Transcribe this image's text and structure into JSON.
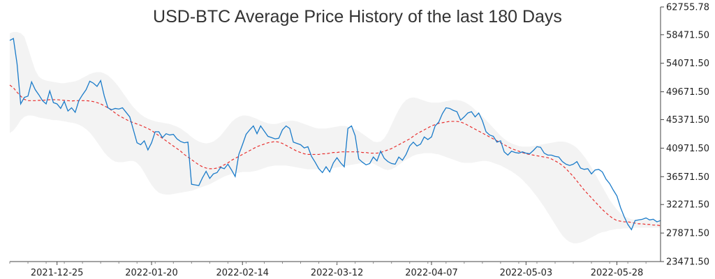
{
  "chart_data": {
    "type": "line",
    "title": "USD-BTC Average Price History of the last 180 Days",
    "xlabel": "",
    "ylabel": "",
    "x_ticks": [
      "2021-12-25",
      "2022-01-20",
      "2022-02-14",
      "2022-03-12",
      "2022-04-07",
      "2022-05-03",
      "2022-05-28"
    ],
    "y_ticks": [
      23471.5,
      27871.5,
      32271.5,
      36571.5,
      40971.5,
      45371.5,
      49671.5,
      54071.5,
      58471.5,
      62755.78
    ],
    "y_tick_labels": [
      "23471.50",
      "27871.50",
      "32271.50",
      "36571.50",
      "40971.50",
      "45371.50",
      "49671.50",
      "54071.50",
      "58471.50",
      "62755.78"
    ],
    "ylim": [
      23471.5,
      62755.78
    ],
    "x_start": "2021-12-12",
    "y_axis_position": "right",
    "grid": false,
    "colors": {
      "price": "#1a7bc9",
      "moving_average": "#e8302f",
      "band": "#ececec"
    },
    "series": [
      {
        "kind": "price",
        "values": [
          57600,
          57900,
          54000,
          47800,
          48800,
          49000,
          51200,
          50000,
          49200,
          48300,
          47800,
          49800,
          48000,
          47800,
          47100,
          48200,
          46700,
          47200,
          46500,
          48300,
          49200,
          50000,
          51300,
          51000,
          50500,
          51400,
          49000,
          47200,
          46900,
          47100,
          47000,
          47200,
          46500,
          45800,
          43800,
          41800,
          41500,
          42100,
          40700,
          41800,
          43500,
          43500,
          42600,
          43200,
          43000,
          43100,
          42400,
          42000,
          41800,
          41900,
          35400,
          35300,
          35200,
          36400,
          37400,
          36300,
          37000,
          37200,
          38000,
          37800,
          38500,
          37600,
          36600,
          40000,
          41500,
          43100,
          43800,
          44400,
          43200,
          44400,
          43600,
          42800,
          42600,
          42400,
          42500,
          43800,
          44400,
          44000,
          41900,
          41700,
          41500,
          41000,
          41200,
          39700,
          38800,
          37800,
          37200,
          38100,
          37300,
          38700,
          39500,
          38700,
          38100,
          44000,
          44400,
          42900,
          39300,
          38800,
          38400,
          38600,
          39600,
          39000,
          40500,
          39400,
          38900,
          38600,
          38500,
          39600,
          39100,
          40000,
          41300,
          41900,
          41300,
          41600,
          42700,
          42300,
          42700,
          44400,
          45000,
          46300,
          47200,
          47100,
          46800,
          46600,
          45300,
          45800,
          46400,
          46600,
          45800,
          46400,
          45200,
          43500,
          43000,
          42800,
          41900,
          42100,
          40400,
          39900,
          40500,
          40300,
          40200,
          40400,
          40200,
          40100,
          40600,
          41200,
          41100,
          40200,
          39900,
          39900,
          39700,
          39600,
          38900,
          38500,
          38300,
          38500,
          38900,
          37900,
          37700,
          37800,
          37000,
          37600,
          37700,
          37300,
          36200,
          35500,
          34500,
          33600,
          31800,
          30400,
          29200,
          28400,
          29800,
          29900,
          30000,
          30200,
          29900,
          30000,
          29600,
          29800
        ]
      },
      {
        "kind": "moving_average",
        "values": [
          50700,
          50300,
          49600,
          49000,
          48500,
          48300,
          48300,
          48300,
          48350,
          48350,
          48400,
          48450,
          48450,
          48450,
          48400,
          48350,
          48300,
          48250,
          48300,
          48300,
          48300,
          48300,
          48250,
          48150,
          48000,
          47800,
          47500,
          47200,
          46800,
          46400,
          46000,
          45700,
          45400,
          45100,
          44900,
          44700,
          44500,
          44250,
          44000,
          43700,
          43300,
          42900,
          42500,
          42100,
          41700,
          41300,
          40900,
          40500,
          40000,
          39600,
          39200,
          38800,
          38400,
          38100,
          37900,
          37800,
          37800,
          37900,
          38100,
          38400,
          38700,
          39100,
          39400,
          39700,
          40000,
          40300,
          40600,
          40900,
          41200,
          41400,
          41600,
          41800,
          41900,
          42000,
          41900,
          41700,
          41400,
          41100,
          40800,
          40500,
          40300,
          40100,
          40000,
          40000,
          40000,
          40000,
          40100,
          40100,
          40200,
          40300,
          40300,
          40400,
          40400,
          40400,
          40400,
          40400,
          40400,
          40300,
          40300,
          40200,
          40200,
          40200,
          40300,
          40500,
          40700,
          40900,
          41200,
          41500,
          41800,
          42100,
          42400,
          42800,
          43200,
          43500,
          43800,
          44100,
          44400,
          44600,
          44800,
          44900,
          45000,
          45100,
          45100,
          45100,
          45000,
          44800,
          44500,
          44200,
          43900,
          43600,
          43300,
          43000,
          42700,
          42400,
          42100,
          41800,
          41500,
          41200,
          40900,
          40700,
          40500,
          40300,
          40100,
          40000,
          39900,
          39800,
          39700,
          39600,
          39500,
          39300,
          39000,
          38700,
          38300,
          37800,
          37200,
          36600,
          35900,
          35200,
          34500,
          33900,
          33300,
          32700,
          32100,
          31500,
          31000,
          30500,
          30100,
          29800,
          29700,
          29600,
          29600,
          29500,
          29400,
          29300,
          29300,
          29200,
          29200,
          29100,
          29100,
          29000
        ]
      },
      {
        "kind": "band_upper",
        "values": [
          58700,
          58900,
          58900,
          58700,
          58200,
          56500,
          54700,
          53000,
          52000,
          51600,
          51400,
          51300,
          51200,
          51100,
          51000,
          51000,
          51100,
          51200,
          51300,
          51500,
          51800,
          52100,
          52400,
          52600,
          52700,
          52700,
          52500,
          52200,
          51700,
          51100,
          50400,
          49600,
          48800,
          48000,
          47300,
          46700,
          46200,
          45800,
          45500,
          45300,
          45100,
          45000,
          44900,
          44800,
          44700,
          44500,
          44300,
          44000,
          43600,
          43200,
          42700,
          42300,
          42000,
          41800,
          41700,
          41800,
          42000,
          42400,
          42900,
          43600,
          44300,
          45000,
          45500,
          45800,
          46000,
          46000,
          45900,
          45700,
          45500,
          45200,
          45000,
          44800,
          44700,
          44700,
          44800,
          45000,
          45100,
          45200,
          45200,
          45100,
          44900,
          44700,
          44500,
          44300,
          44100,
          44000,
          44000,
          44000,
          44100,
          44200,
          44300,
          44400,
          44400,
          44300,
          44100,
          43900,
          43600,
          43200,
          42800,
          42400,
          42000,
          41900,
          42000,
          42500,
          43400,
          44600,
          45800,
          46900,
          47800,
          48400,
          48700,
          48800,
          48700,
          48500,
          48300,
          48100,
          48000,
          48000,
          48000,
          48100,
          48200,
          48300,
          48400,
          48400,
          48300,
          48100,
          47800,
          47400,
          46900,
          46400,
          45900,
          45300,
          44700,
          44100,
          43500,
          42900,
          42400,
          42000,
          41700,
          41500,
          41300,
          41200,
          41200,
          41200,
          41300,
          41400,
          41500,
          41600,
          41700,
          41800,
          41900,
          42000,
          42000,
          41900,
          41700,
          41400,
          41000,
          40400,
          39700,
          38900,
          38000,
          37000,
          36000,
          35000,
          34000,
          33000,
          32200,
          31500,
          30900,
          30500,
          30200,
          30000,
          29900,
          29900,
          29900,
          29900,
          29900,
          29800,
          29800,
          29700
        ]
      },
      {
        "kind": "band_lower",
        "values": [
          43300,
          43700,
          44400,
          45300,
          45800,
          46000,
          46000,
          45900,
          45700,
          45600,
          45500,
          45400,
          45300,
          45300,
          45200,
          45100,
          45000,
          44900,
          44800,
          44600,
          44300,
          43900,
          43400,
          42700,
          41900,
          41100,
          40300,
          39700,
          39200,
          38900,
          38800,
          38800,
          38900,
          39000,
          39000,
          38700,
          38100,
          37200,
          36200,
          35300,
          34600,
          34100,
          33900,
          33800,
          33800,
          33900,
          34000,
          34100,
          34200,
          34300,
          34400,
          34600,
          34800,
          35000,
          35200,
          35400,
          35700,
          36000,
          36300,
          36600,
          36800,
          37000,
          37100,
          37200,
          37300,
          37300,
          37300,
          37400,
          37500,
          37700,
          37900,
          38100,
          38200,
          38300,
          38300,
          38300,
          38300,
          38200,
          38100,
          38000,
          37900,
          37800,
          37700,
          37700,
          37700,
          37700,
          37700,
          37700,
          37800,
          37900,
          38000,
          38100,
          38200,
          38300,
          38400,
          38500,
          38600,
          38700,
          38800,
          38800,
          38600,
          38300,
          38000,
          37700,
          37600,
          37700,
          38000,
          38400,
          38800,
          39200,
          39500,
          39800,
          40000,
          40100,
          40200,
          40200,
          40200,
          40100,
          40000,
          39800,
          39600,
          39400,
          39200,
          39000,
          38800,
          38700,
          38700,
          38700,
          38800,
          38900,
          39000,
          39000,
          38900,
          38700,
          38500,
          38300,
          38000,
          37700,
          37400,
          37000,
          36600,
          36100,
          35500,
          34900,
          34200,
          33500,
          32700,
          31900,
          31000,
          30100,
          29200,
          28300,
          27500,
          26900,
          26500,
          26300,
          26300,
          26400,
          26600,
          26900,
          27200,
          27500,
          27800,
          28000,
          28100,
          28300,
          28400,
          28500,
          28500,
          28600,
          28600,
          28600,
          28700,
          28700,
          28700,
          28700,
          28700,
          28700,
          28700,
          28700
        ]
      }
    ]
  }
}
